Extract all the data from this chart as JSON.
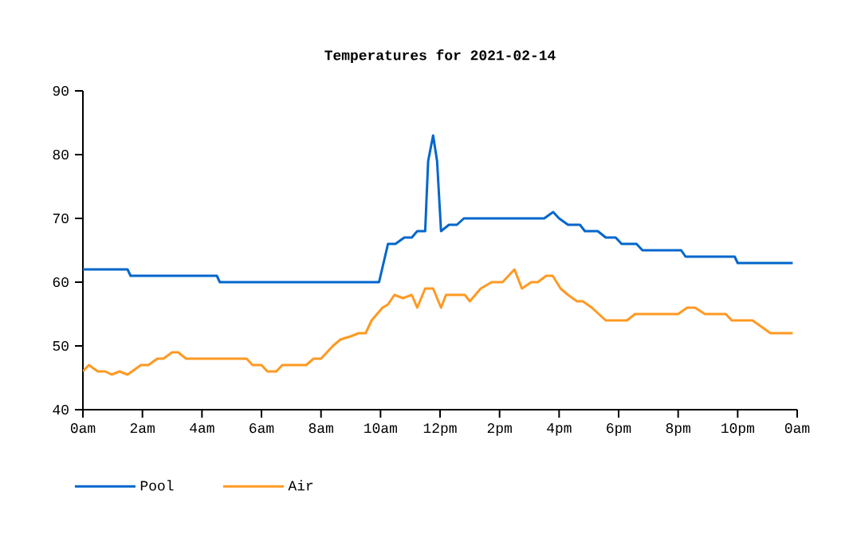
{
  "chart_data": {
    "type": "line",
    "title": "Temperatures for 2021-02-14",
    "xlim": [
      "2021-02-14T00:00",
      "2021-02-15T00:00"
    ],
    "xticks": [
      {
        "value": "2021-02-14T00:00",
        "label": "0am"
      },
      {
        "value": "2021-02-14T02:00",
        "label": "2am"
      },
      {
        "value": "2021-02-14T04:00",
        "label": "4am"
      },
      {
        "value": "2021-02-14T06:00",
        "label": "6am"
      },
      {
        "value": "2021-02-14T08:00",
        "label": "8am"
      },
      {
        "value": "2021-02-14T10:00",
        "label": "10am"
      },
      {
        "value": "2021-02-14T12:00",
        "label": "12pm"
      },
      {
        "value": "2021-02-14T14:00",
        "label": "2pm"
      },
      {
        "value": "2021-02-14T16:00",
        "label": "4pm"
      },
      {
        "value": "2021-02-14T18:00",
        "label": "6pm"
      },
      {
        "value": "2021-02-14T20:00",
        "label": "8pm"
      },
      {
        "value": "2021-02-14T22:00",
        "label": "10pm"
      },
      {
        "value": "2021-02-15T00:00",
        "label": "0am"
      }
    ],
    "ylim": [
      40,
      90
    ],
    "yticks": [
      40,
      50,
      60,
      70,
      80,
      90
    ],
    "grid": false,
    "legend": "bottom left",
    "marker": "none",
    "line_style": "solid",
    "series": [
      {
        "name": "Pool",
        "color": "#0066cc",
        "x": [
          "2021-02-14T00:00",
          "2021-02-14T01:30",
          "2021-02-14T01:36",
          "2021-02-14T04:30",
          "2021-02-14T04:36",
          "2021-02-14T09:57",
          "2021-02-14T10:15",
          "2021-02-14T10:30",
          "2021-02-14T10:48",
          "2021-02-14T11:03",
          "2021-02-14T11:14",
          "2021-02-14T11:30",
          "2021-02-14T11:36",
          "2021-02-14T11:46",
          "2021-02-14T11:54",
          "2021-02-14T12:02",
          "2021-02-14T12:18",
          "2021-02-14T12:34",
          "2021-02-14T12:48",
          "2021-02-14T15:30",
          "2021-02-14T15:48",
          "2021-02-14T16:00",
          "2021-02-14T16:18",
          "2021-02-14T16:42",
          "2021-02-14T16:52",
          "2021-02-14T17:18",
          "2021-02-14T17:34",
          "2021-02-14T17:54",
          "2021-02-14T18:06",
          "2021-02-14T18:36",
          "2021-02-14T18:48",
          "2021-02-14T20:06",
          "2021-02-14T20:15",
          "2021-02-14T21:54",
          "2021-02-14T22:00",
          "2021-02-14T23:51"
        ],
        "values": [
          62,
          62,
          61,
          61,
          60,
          60,
          66,
          66,
          67,
          67,
          68,
          68,
          79,
          83,
          79,
          68,
          69,
          69,
          70,
          70,
          71,
          70,
          69,
          69,
          68,
          68,
          67,
          67,
          66,
          66,
          65,
          65,
          64,
          64,
          63,
          63
        ]
      },
      {
        "name": "Air",
        "color": "#ff9922",
        "x": [
          "2021-02-14T00:00",
          "2021-02-14T00:12",
          "2021-02-14T00:30",
          "2021-02-14T00:45",
          "2021-02-14T00:58",
          "2021-02-14T01:14",
          "2021-02-14T01:30",
          "2021-02-14T01:57",
          "2021-02-14T02:12",
          "2021-02-14T02:30",
          "2021-02-14T02:42",
          "2021-02-14T03:00",
          "2021-02-14T03:12",
          "2021-02-14T03:28",
          "2021-02-14T05:30",
          "2021-02-14T05:42",
          "2021-02-14T06:00",
          "2021-02-14T06:12",
          "2021-02-14T06:30",
          "2021-02-14T06:42",
          "2021-02-14T07:30",
          "2021-02-14T07:45",
          "2021-02-14T08:00",
          "2021-02-14T08:24",
          "2021-02-14T08:39",
          "2021-02-14T09:00",
          "2021-02-14T09:16",
          "2021-02-14T09:30",
          "2021-02-14T09:42",
          "2021-02-14T10:04",
          "2021-02-14T10:15",
          "2021-02-14T10:28",
          "2021-02-14T10:45",
          "2021-02-14T11:03",
          "2021-02-14T11:14",
          "2021-02-14T11:30",
          "2021-02-14T11:46",
          "2021-02-14T12:02",
          "2021-02-14T12:12",
          "2021-02-14T12:50",
          "2021-02-14T13:00",
          "2021-02-14T13:22",
          "2021-02-14T13:44",
          "2021-02-14T14:06",
          "2021-02-14T14:30",
          "2021-02-14T14:45",
          "2021-02-14T15:04",
          "2021-02-14T15:17",
          "2021-02-14T15:34",
          "2021-02-14T15:47",
          "2021-02-14T16:03",
          "2021-02-14T16:18",
          "2021-02-14T16:36",
          "2021-02-14T16:48",
          "2021-02-14T17:06",
          "2021-02-14T17:34",
          "2021-02-14T18:17",
          "2021-02-14T18:33",
          "2021-02-14T20:00",
          "2021-02-14T20:18",
          "2021-02-14T20:34",
          "2021-02-14T20:54",
          "2021-02-14T21:36",
          "2021-02-14T21:48",
          "2021-02-14T22:30",
          "2021-02-14T23:06",
          "2021-02-14T23:51"
        ],
        "values": [
          46,
          47,
          46,
          46,
          45.5,
          46,
          45.5,
          47,
          47,
          48,
          48,
          49,
          49,
          48,
          48,
          47,
          47,
          46,
          46,
          47,
          47,
          48,
          48,
          50,
          51,
          51.5,
          52,
          52,
          54,
          56,
          56.5,
          58,
          57.5,
          58,
          56,
          59,
          59,
          56,
          58,
          58,
          57,
          59,
          60,
          60,
          62,
          59,
          60,
          60,
          61,
          61,
          59,
          58,
          57,
          57,
          56,
          54,
          54,
          55,
          55,
          56,
          56,
          55,
          55,
          54,
          54,
          52,
          52
        ]
      }
    ]
  }
}
